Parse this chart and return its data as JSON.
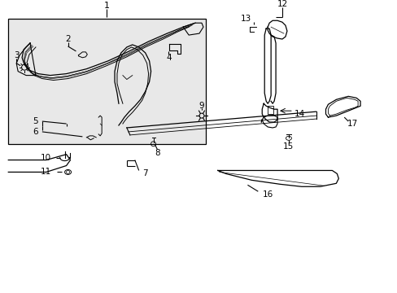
{
  "background_color": "#ffffff",
  "box_fill": "#e8e8e8",
  "line_color": "#000000",
  "figsize": [
    4.89,
    3.6
  ],
  "dpi": 100
}
